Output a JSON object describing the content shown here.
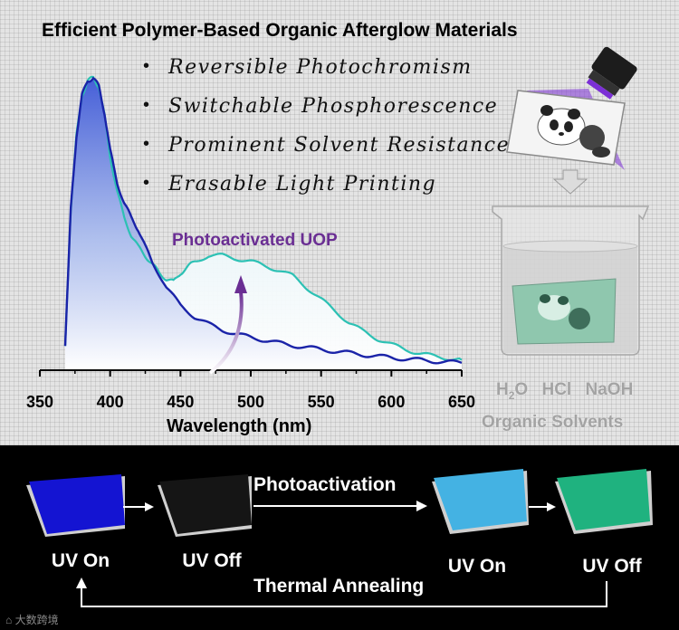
{
  "title": "Efficient Polymer-Based Organic Afterglow Materials",
  "features": [
    "Reversible Photochromism",
    "Switchable Phosphorescence",
    "Prominent Solvent Resistance",
    "Erasable Light Printing"
  ],
  "annotation": "Photoactivated UOP",
  "solvents": {
    "line1": [
      "H2O",
      "HCl",
      "NaOH"
    ],
    "line2": "Organic Solvents"
  },
  "process": {
    "states": [
      {
        "label": "UV On",
        "color": "#1414d2"
      },
      {
        "label": "UV Off",
        "color": "#151515"
      },
      {
        "label": "UV On",
        "color": "#44b2e3"
      },
      {
        "label": "UV Off",
        "color": "#1fb27f"
      }
    ],
    "forward_label": "Photoactivation",
    "reverse_label": "Thermal Annealing"
  },
  "watermark": "大数跨境",
  "colors": {
    "fluorescence": "#1a23a8",
    "phosphorescence": "#2cc1b4",
    "annotation": "#6a2e93"
  },
  "chart_data": {
    "type": "line",
    "xlabel": "Wavelength (nm)",
    "ylabel": "",
    "xlim": [
      350,
      650
    ],
    "xticks": [
      350,
      400,
      450,
      500,
      550,
      600,
      650
    ],
    "series": [
      {
        "x": [
          368,
          372,
          376,
          380,
          384,
          388,
          392,
          396,
          400,
          405,
          410,
          415,
          420,
          425,
          430,
          440,
          450,
          460,
          470,
          480,
          490,
          500,
          510,
          520,
          530,
          540,
          550,
          560,
          570,
          580,
          590,
          600,
          610,
          620,
          630,
          640,
          650
        ],
        "y": [
          0.08,
          0.55,
          0.8,
          0.94,
          0.99,
          1.0,
          0.97,
          0.88,
          0.75,
          0.64,
          0.57,
          0.52,
          0.48,
          0.42,
          0.37,
          0.28,
          0.22,
          0.18,
          0.155,
          0.135,
          0.12,
          0.11,
          0.1,
          0.09,
          0.082,
          0.075,
          0.068,
          0.062,
          0.056,
          0.05,
          0.045,
          0.04,
          0.036,
          0.032,
          0.028,
          0.025,
          0.022
        ]
      },
      {
        "x": [
          368,
          372,
          376,
          380,
          384,
          388,
          392,
          396,
          400,
          405,
          410,
          415,
          420,
          425,
          430,
          435,
          440,
          445,
          450,
          455,
          460,
          470,
          480,
          490,
          500,
          510,
          520,
          530,
          540,
          550,
          560,
          570,
          580,
          590,
          600,
          610,
          620,
          630,
          640,
          650
        ],
        "y": [
          0.08,
          0.55,
          0.8,
          0.94,
          0.99,
          1.0,
          0.97,
          0.87,
          0.73,
          0.61,
          0.52,
          0.46,
          0.42,
          0.39,
          0.36,
          0.33,
          0.31,
          0.3,
          0.33,
          0.35,
          0.37,
          0.39,
          0.39,
          0.38,
          0.37,
          0.355,
          0.34,
          0.32,
          0.28,
          0.24,
          0.2,
          0.16,
          0.13,
          0.105,
          0.085,
          0.068,
          0.055,
          0.045,
          0.038,
          0.032
        ]
      }
    ]
  }
}
